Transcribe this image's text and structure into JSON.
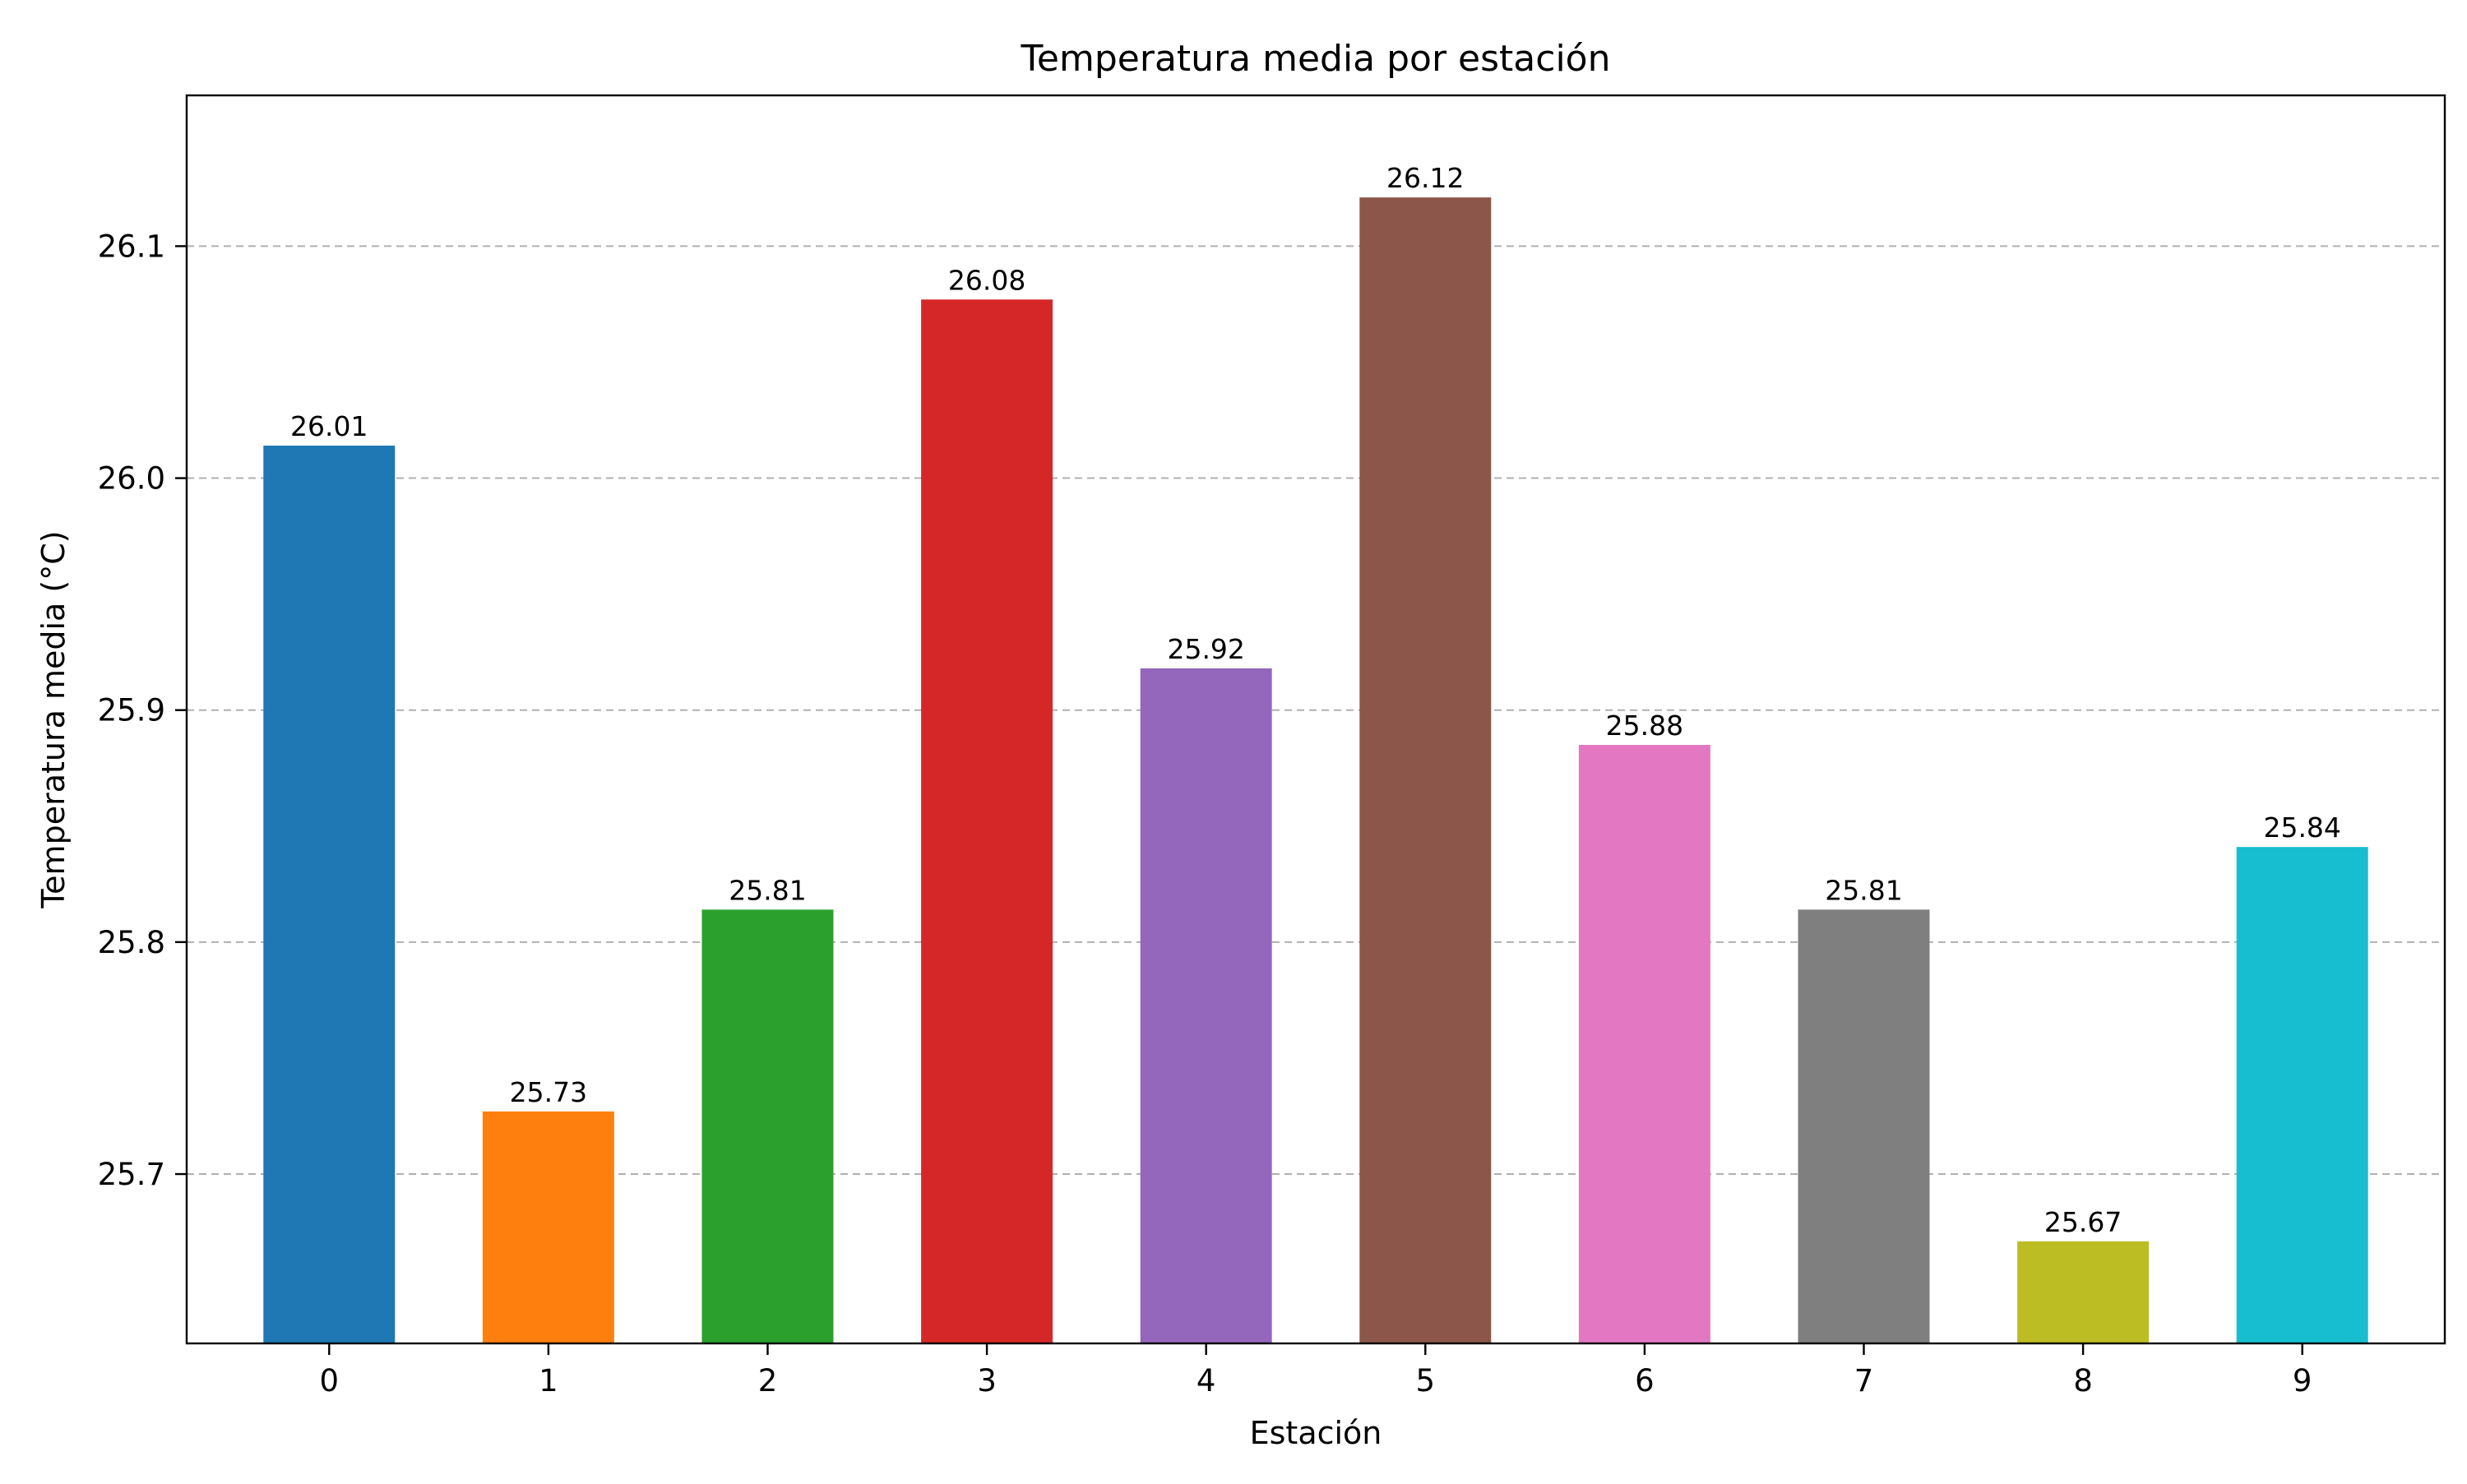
{
  "chart_data": {
    "type": "bar",
    "title": "Temperatura media por estación",
    "xlabel": "Estación",
    "ylabel": "Temperatura media (°C)",
    "categories": [
      "0",
      "1",
      "2",
      "3",
      "4",
      "5",
      "6",
      "7",
      "8",
      "9"
    ],
    "values": [
      26.014,
      25.727,
      25.814,
      26.077,
      25.918,
      26.121,
      25.885,
      25.814,
      25.671,
      25.841
    ],
    "value_labels": [
      "26.01",
      "25.73",
      "25.81",
      "26.08",
      "25.92",
      "26.12",
      "25.88",
      "25.81",
      "25.67",
      "25.84"
    ],
    "ylim": [
      25.627,
      26.165
    ],
    "yticks": [
      25.7,
      25.8,
      25.9,
      26.0,
      26.1
    ],
    "ytick_labels": [
      "25.7",
      "25.8",
      "25.9",
      "26.0",
      "26.1"
    ],
    "colors": [
      "#1f77b4",
      "#ff7f0e",
      "#2ca02c",
      "#d62728",
      "#9467bd",
      "#8c564b",
      "#e377c2",
      "#7f7f7f",
      "#bcbd22",
      "#17becf"
    ],
    "grid": {
      "axis": "y",
      "style": "dashed",
      "color": "#b0b0b0"
    },
    "legend": "none"
  }
}
